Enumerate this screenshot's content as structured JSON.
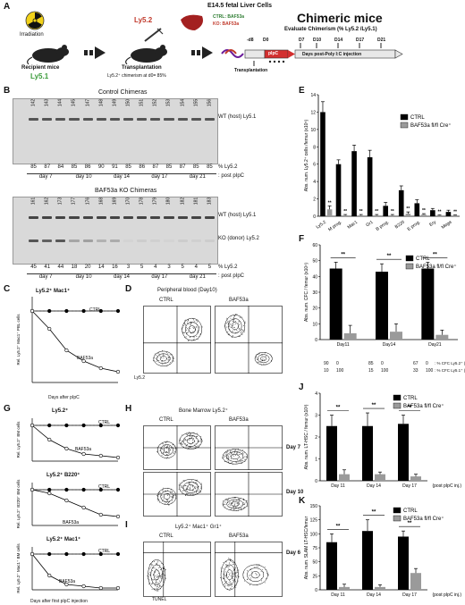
{
  "panel_letters": [
    "A",
    "B",
    "C",
    "D",
    "E",
    "F",
    "G",
    "H",
    "I",
    "J",
    "K"
  ],
  "panelA": {
    "irradiation": "Irradiation",
    "recipient_label": "Recipient mice",
    "recipient_marker": "Ly5.1",
    "donor_marker": "Ly5.2",
    "fetal_label": "E14.5 fetal Liver Cells",
    "ctrl_geno": "CTRL: BAF53a",
    "ko_geno": "KO: BAF53a",
    "transplantation": "Transplantation",
    "chimerism_d0": "Ly5.2⁺ chimerism at d0= 85%",
    "chimeric_title": "Chimeric mice",
    "chimeric_subtitle": "Evaluate Chimerism (% Ly5.2 /Ly5.1)",
    "timeline_days": [
      "-d8",
      "D0",
      "D7",
      "D10",
      "D14",
      "D17",
      "D21"
    ],
    "timeline_pi": "pIpC",
    "timeline_post": "Days post-Poly I:C injection",
    "timeline_transplant": "Transplantation"
  },
  "panelB": {
    "ctrl_title": "Control Chimeras",
    "ko_title": "BAF53a KO Chimeras",
    "wt_label": "WT (host) Ly5.1",
    "ko_label": "KO (donor) Ly5.2",
    "pct_label": "% Ly5.2",
    "post_label": ": post pIpC",
    "ctrl_ids": [
      "142",
      "143",
      "144",
      "145",
      "147",
      "148",
      "149",
      "150",
      "151",
      "152",
      "153",
      "154",
      "155",
      "156"
    ],
    "ctrl_pct": [
      "85",
      "87",
      "84",
      "85",
      "86",
      "90",
      "91",
      "85",
      "86",
      "87",
      "85",
      "87",
      "85",
      "85"
    ],
    "ko_ids": [
      "161",
      "162",
      "173",
      "177",
      "176",
      "168",
      "169",
      "170",
      "178",
      "179",
      "180",
      "182",
      "181",
      "183"
    ],
    "ko_pct": [
      "45",
      "41",
      "44",
      "18",
      "20",
      "14",
      "16",
      "3",
      "5",
      "4",
      "3",
      "5",
      "4",
      "5"
    ],
    "days": [
      "day 7",
      "day 10",
      "day 14",
      "day 17",
      "day 21"
    ]
  },
  "panelC": {
    "title": "Ly5.2⁺ Mac1⁺",
    "ylabel": "Rel. Ly5.2⁺ Mac1⁺ PBL cells",
    "xlabel": "Days after pIpC",
    "ctrl": "CTRL",
    "ko": "BAF53a"
  },
  "panelD": {
    "title": "Peripheral blood (Day10)",
    "ctrl": "CTRL",
    "ko": "BAF53a",
    "x": "Ly5.2",
    "y": "Ly5.1"
  },
  "panelE": {
    "ylabel": "Abs. num. Ly5.2⁺ cells /femur (x10⁵)",
    "legend": [
      "CTRL",
      "BAF53a"
    ],
    "categories": [
      "Ly5.2",
      "M prog.",
      "Mac1",
      "Gr1",
      "B prog.",
      "B220",
      "E prog.",
      "Ery",
      "Mega"
    ],
    "sig": "**"
  },
  "panelF": {
    "ylabel": "Abs. num. CFC / femur (x10⁴)",
    "legend": [
      "CTRL",
      "BAF53a"
    ],
    "categories": [
      "Day11",
      "Day14",
      "Day21"
    ],
    "row1": [
      "90",
      "0",
      "85",
      "0",
      "67",
      "0"
    ],
    "row2": [
      "10",
      "100",
      "15",
      "100",
      "33",
      "100"
    ],
    "row1_label": ": % CFC Ly5.2⁺ (donor)",
    "row2_label": ": % CFC Ly5.1⁺ (recipient)",
    "sig": "**"
  },
  "panelG": {
    "sub1": "Ly5.2⁺",
    "sub2": "Ly5.2⁺ B220⁺",
    "sub3": "Ly5.2⁺ Mac1⁺",
    "y1": "Rel. Ly5.2⁺ BM cells",
    "y2": "Rel. Ly5.2⁺ B220⁺ BM cells",
    "y3": "Rel. Ly5.2⁺ Mac1⁺ BM cells",
    "xlabel": "Days after first pIpC injection",
    "ctrl": "CTRL",
    "ko": "BAF53a"
  },
  "panelH": {
    "title": "Bone Marrow Ly5.2⁺",
    "ctrl": "CTRL",
    "ko": "BAF53a",
    "day7": "Day 7",
    "day10": "Day 10",
    "x": "Gr1",
    "y": "Mac1"
  },
  "panelI": {
    "title": "Ly5.2⁺ Mac1⁺ Gr1⁺",
    "ctrl": "CTRL",
    "ko": "BAF53a",
    "day": "Day 6",
    "x": "TUNEL",
    "y": "FSC"
  },
  "panelJ": {
    "ylabel": "Abs. num. LT-HSC / femur (x10³)",
    "legend": [
      "CTRL",
      "BAF53a"
    ],
    "categories": [
      "Day 11",
      "Day 14",
      "Day 17"
    ],
    "post": "(post pIpC inj.)",
    "sig": "**"
  },
  "panelK": {
    "ylabel": "Abs. num. SLAM LT-HSC/femur",
    "legend": [
      "CTRL",
      "BAF53a"
    ],
    "categories": [
      "Day 11",
      "Day 14",
      "Day 17"
    ],
    "post": "(post pIpC inj.)",
    "sig": "**"
  },
  "chart_data": [
    {
      "type": "bar",
      "panel": "E",
      "categories": [
        "Ly5.2",
        "M prog.",
        "Mac1",
        "Gr1",
        "B prog.",
        "B220",
        "E prog.",
        "Ery",
        "Mega"
      ],
      "series": [
        {
          "name": "CTRL",
          "values": [
            12,
            6,
            7.5,
            6.8,
            1.2,
            3,
            1.5,
            0.7,
            0.5
          ],
          "err": [
            1.2,
            0.5,
            0.7,
            0.8,
            0.4,
            0.5,
            0.4,
            0.2,
            0.2
          ]
        },
        {
          "name": "BAF53a",
          "values": [
            0.8,
            0.1,
            0.1,
            0.1,
            0.1,
            0.3,
            0.2,
            0.1,
            0.1
          ],
          "err": [
            0.4,
            0.1,
            0.1,
            0.1,
            0.1,
            0.2,
            0.1,
            0.05,
            0.05
          ]
        }
      ],
      "ylim": [
        0,
        14
      ],
      "yticks": [
        0,
        2,
        4,
        6,
        8,
        10,
        12,
        14
      ]
    },
    {
      "type": "bar",
      "panel": "F",
      "categories": [
        "Day11",
        "Day14",
        "Day21"
      ],
      "series": [
        {
          "name": "CTRL",
          "values": [
            45,
            43,
            45
          ],
          "err": [
            4,
            5,
            4
          ]
        },
        {
          "name": "BAF53a",
          "values": [
            4,
            5,
            3
          ],
          "err": [
            5,
            5,
            3
          ]
        }
      ],
      "ylim": [
        0,
        60
      ],
      "yticks": [
        0,
        10,
        20,
        30,
        40,
        50,
        60
      ]
    },
    {
      "type": "bar",
      "panel": "J",
      "categories": [
        "Day 11",
        "Day 14",
        "Day 17"
      ],
      "series": [
        {
          "name": "CTRL",
          "values": [
            2.5,
            2.5,
            2.6
          ],
          "err": [
            0.5,
            0.6,
            0.4
          ]
        },
        {
          "name": "BAF53a",
          "values": [
            0.3,
            0.3,
            0.2
          ],
          "err": [
            0.2,
            0.1,
            0.1
          ]
        }
      ],
      "ylim": [
        0,
        4
      ],
      "yticks": [
        0,
        1,
        2,
        3,
        4
      ]
    },
    {
      "type": "bar",
      "panel": "K",
      "categories": [
        "Day 11",
        "Day 14",
        "Day 17"
      ],
      "series": [
        {
          "name": "CTRL",
          "values": [
            85,
            105,
            95
          ],
          "err": [
            15,
            20,
            10
          ]
        },
        {
          "name": "BAF53a",
          "values": [
            5,
            5,
            30
          ],
          "err": [
            5,
            4,
            8
          ]
        }
      ],
      "ylim": [
        0,
        150
      ],
      "yticks": [
        0,
        25,
        50,
        75,
        100,
        125,
        150
      ]
    },
    {
      "type": "line",
      "panel": "C",
      "x": [
        0,
        5,
        10,
        15,
        20,
        25
      ],
      "series": [
        {
          "name": "CTRL",
          "values": [
            1,
            1,
            1,
            1,
            1,
            1
          ]
        },
        {
          "name": "BAF53a",
          "values": [
            1,
            0.75,
            0.45,
            0.3,
            0.2,
            0.15
          ]
        }
      ],
      "ylim": [
        0,
        1.2
      ]
    },
    {
      "type": "line",
      "panel": "G1",
      "x": [
        0,
        5,
        10,
        15,
        20,
        25
      ],
      "series": [
        {
          "name": "CTRL",
          "values": [
            1,
            1,
            1,
            1,
            1,
            1
          ]
        },
        {
          "name": "BAF53a",
          "values": [
            1,
            0.6,
            0.35,
            0.2,
            0.15,
            0.1
          ]
        }
      ],
      "ylim": [
        0,
        1.2
      ]
    },
    {
      "type": "line",
      "panel": "G2",
      "x": [
        0,
        5,
        10,
        15,
        20,
        25
      ],
      "series": [
        {
          "name": "CTRL",
          "values": [
            1,
            1,
            1,
            1,
            1,
            1
          ]
        },
        {
          "name": "BAF53a",
          "values": [
            1,
            0.9,
            0.7,
            0.5,
            0.3,
            0.25
          ]
        }
      ],
      "ylim": [
        0,
        1.2
      ]
    },
    {
      "type": "line",
      "panel": "G3",
      "x": [
        0,
        5,
        10,
        15,
        20,
        25
      ],
      "series": [
        {
          "name": "CTRL",
          "values": [
            1,
            1,
            1,
            1,
            1,
            1
          ]
        },
        {
          "name": "BAF53a",
          "values": [
            1,
            0.4,
            0.15,
            0.1,
            0.05,
            0.05
          ]
        }
      ],
      "ylim": [
        0,
        1.2
      ]
    }
  ]
}
